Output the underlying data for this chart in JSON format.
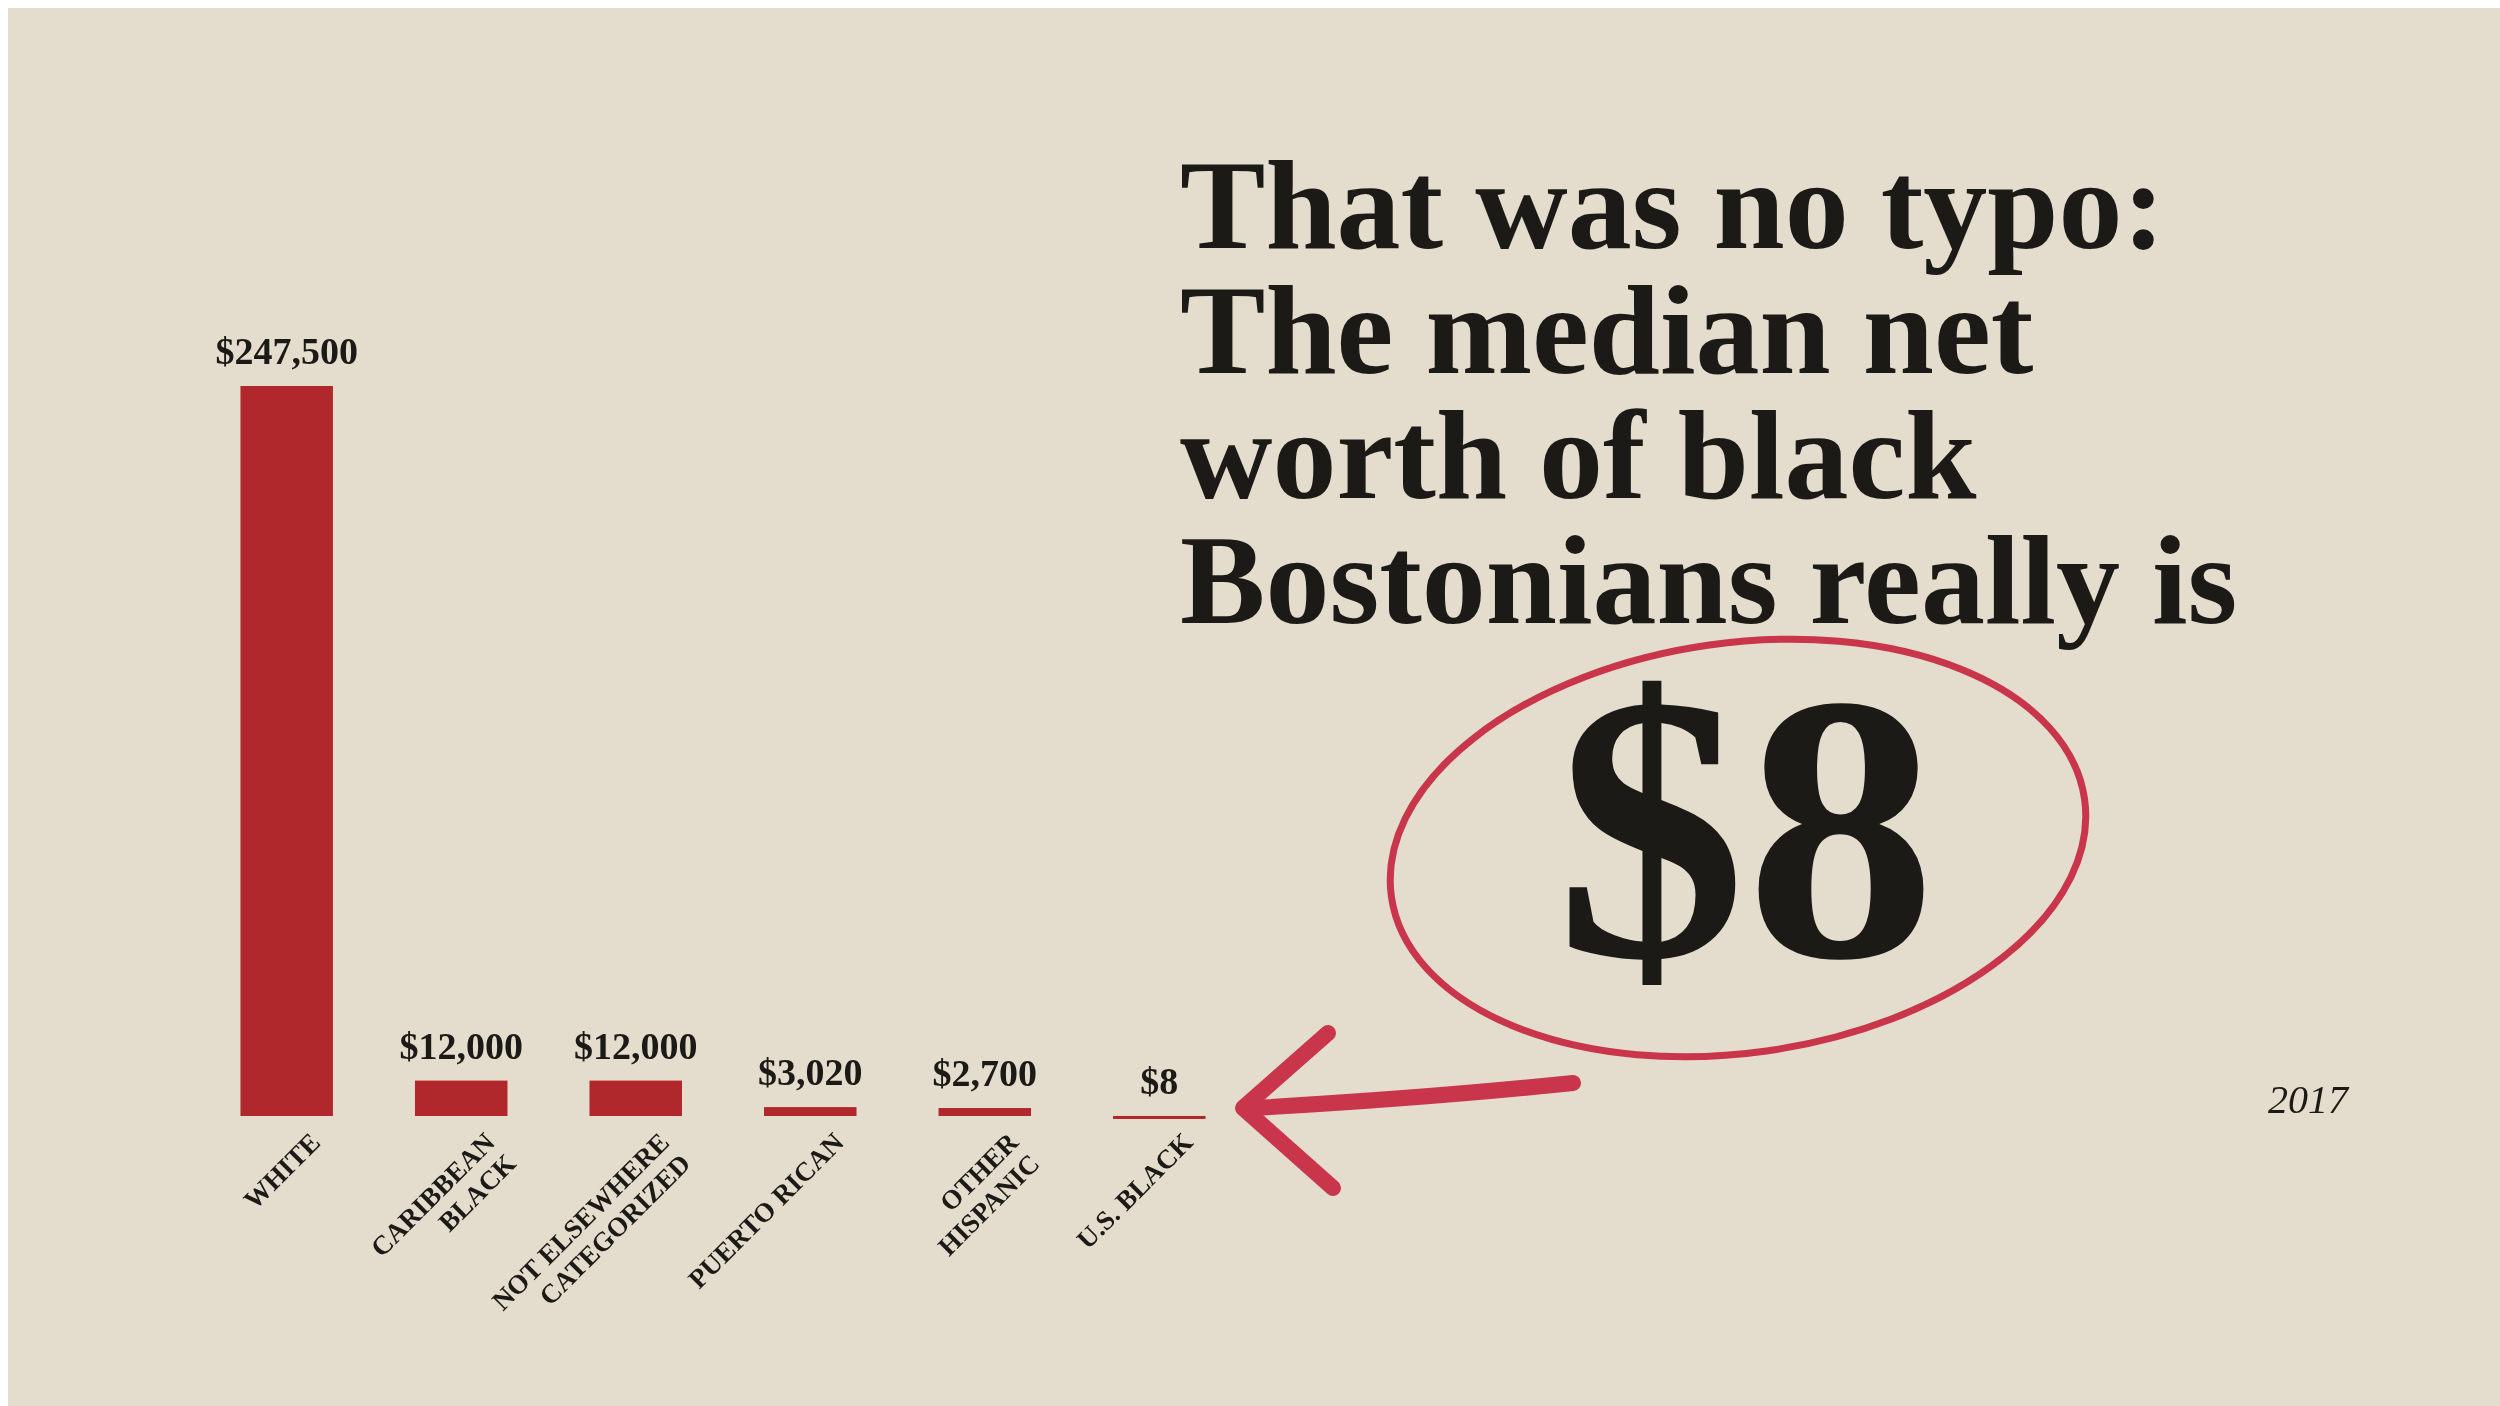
{
  "chart_data": {
    "type": "bar",
    "title": "That was no typo:\nThe median net\nworth of black\nBostonians really is",
    "subtitle": "$8",
    "categories": [
      "WHITE",
      "CARIBBEAN\nBLACK",
      "NOT ELSEWHERE\nCATEGORIZED",
      "PUERTO RICAN",
      "OTHER\nHISPANIC",
      "U.S. BLACK"
    ],
    "values": [
      247500,
      12000,
      12000,
      3020,
      2700,
      8
    ],
    "value_labels": [
      "$247,500",
      "$12,000",
      "$12,000",
      "$3,020",
      "$2,700",
      "$8"
    ],
    "color": "#b0282b",
    "annotations": [
      "2017"
    ]
  }
}
